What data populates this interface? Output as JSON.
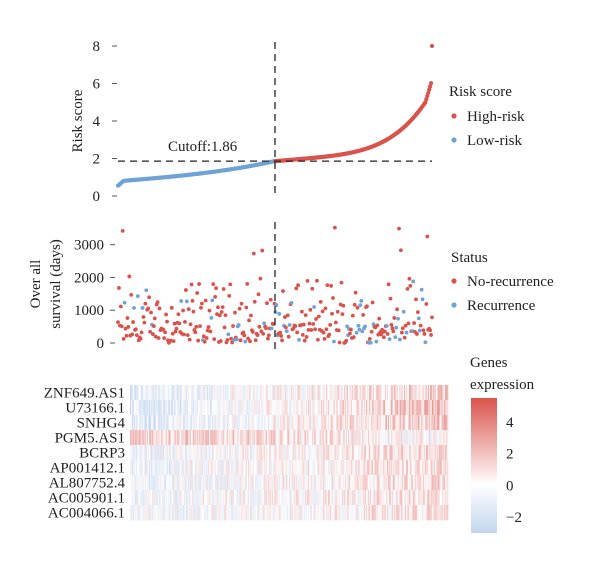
{
  "chart_data": [
    {
      "type": "scatter",
      "ylabel": "Risk score",
      "ylim": [
        0,
        8
      ],
      "yticks": [
        "0",
        "2",
        "4",
        "6",
        "8"
      ],
      "cutoff_label": "Cutoff:1.86",
      "cutoff_value": 1.86,
      "legend": {
        "title": "Risk score",
        "placement": "right",
        "entries": [
          "High-risk",
          "Low-risk"
        ]
      },
      "n_patients": 334,
      "n_low_risk": 167,
      "low_risk_score_range": [
        0.55,
        1.86
      ],
      "high_risk_score_range": [
        1.86,
        8.0
      ],
      "colors": {
        "High-risk": "#d9534c",
        "Low-risk": "#6fa3d6"
      }
    },
    {
      "type": "scatter",
      "ylabel": "Over all\nsurvival (days)",
      "ylim": [
        0,
        3600
      ],
      "yticks": [
        "0",
        "1000",
        "2000",
        "3000"
      ],
      "legend": {
        "title": "Status",
        "placement": "right",
        "entries": [
          "No-recurrence",
          "Recurrence"
        ]
      },
      "colors": {
        "No-recurrence": "#d9534c",
        "Recurrence": "#6fa3d6"
      },
      "highlighted_points": [
        {
          "patient_index": 5,
          "days": 3420,
          "status": "No-recurrence"
        },
        {
          "patient_index": 230,
          "days": 3520,
          "status": "No-recurrence"
        },
        {
          "patient_index": 298,
          "days": 3490,
          "status": "No-recurrence"
        },
        {
          "patient_index": 328,
          "days": 3250,
          "status": "No-recurrence"
        },
        {
          "patient_index": 144,
          "days": 2730,
          "status": "No-recurrence"
        },
        {
          "patient_index": 153,
          "days": 2820,
          "status": "No-recurrence"
        },
        {
          "patient_index": 300,
          "days": 2830,
          "status": "No-recurrence"
        },
        {
          "patient_index": 12,
          "days": 2030,
          "status": "No-recurrence"
        },
        {
          "patient_index": 67,
          "days": 1280,
          "status": "Recurrence"
        },
        {
          "patient_index": 100,
          "days": 1300,
          "status": "Recurrence"
        },
        {
          "patient_index": 313,
          "days": 1880,
          "status": "Recurrence"
        }
      ]
    },
    {
      "type": "heatmap",
      "rows": [
        "ZNF649.AS1",
        "U73166.1",
        "SNHG4",
        "PGM5.AS1",
        "BCRP3",
        "AP001412.1",
        "AL807752.4",
        "AC005901.1",
        "AC004066.1"
      ],
      "colorbar": {
        "title": "Genes\nexpression",
        "ticks": [
          "4",
          "2",
          "0",
          "−2"
        ],
        "range": [
          -3,
          5.5
        ],
        "low_color": "#c3d6ee",
        "mid_color": "#ffffff",
        "high_color": "#d9534c"
      },
      "columns": 334
    }
  ]
}
